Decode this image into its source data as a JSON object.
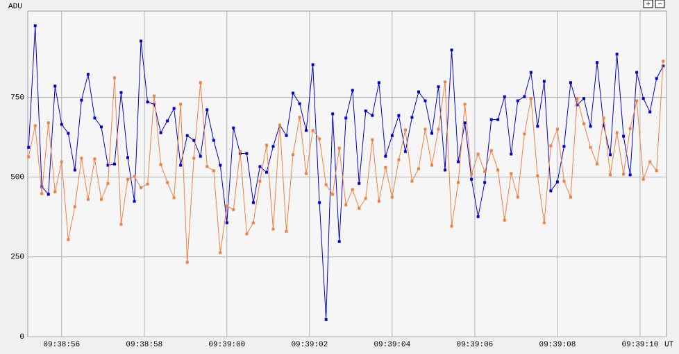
{
  "chart_data": {
    "type": "line",
    "y_label": "ADU",
    "x_label": "UT",
    "controls": [
      "+",
      "−"
    ],
    "grid": true,
    "ylim": [
      0,
      1020
    ],
    "yticks": [
      0,
      250,
      500,
      750
    ],
    "xlim": [
      34735.18,
      34750.64
    ],
    "xticks": [
      {
        "value": 34736,
        "label": "09:38:56"
      },
      {
        "value": 34738,
        "label": "09:38:58"
      },
      {
        "value": 34740,
        "label": "09:39:00"
      },
      {
        "value": 34742,
        "label": "09:39:02"
      },
      {
        "value": 34744,
        "label": "09:39:04"
      },
      {
        "value": 34746,
        "label": "09:39:06"
      },
      {
        "value": 34748,
        "label": "09:39:08"
      },
      {
        "value": 34750,
        "label": "09:39:10"
      }
    ],
    "x": [
      34735.2,
      34735.36,
      34735.52,
      34735.68,
      34735.84,
      34736,
      34736.16,
      34736.32,
      34736.48,
      34736.64,
      34736.8,
      34736.96,
      34737.12,
      34737.28,
      34737.44,
      34737.6,
      34737.76,
      34737.92,
      34738.08,
      34738.24,
      34738.4,
      34738.56,
      34738.72,
      34738.88,
      34739.04,
      34739.2,
      34739.36,
      34739.52,
      34739.68,
      34739.84,
      34740,
      34740.16,
      34740.32,
      34740.48,
      34740.64,
      34740.8,
      34740.96,
      34741.12,
      34741.28,
      34741.44,
      34741.6,
      34741.76,
      34741.92,
      34742.08,
      34742.24,
      34742.4,
      34742.56,
      34742.72,
      34742.88,
      34743.04,
      34743.2,
      34743.36,
      34743.52,
      34743.68,
      34743.84,
      34744,
      34744.16,
      34744.32,
      34744.48,
      34744.64,
      34744.8,
      34744.96,
      34745.12,
      34745.28,
      34745.44,
      34745.6,
      34745.76,
      34745.92,
      34746.08,
      34746.24,
      34746.4,
      34746.56,
      34746.72,
      34746.88,
      34747.04,
      34747.2,
      34747.36,
      34747.52,
      34747.68,
      34747.84,
      34748,
      34748.16,
      34748.32,
      34748.48,
      34748.64,
      34748.8,
      34748.96,
      34749.12,
      34749.28,
      34749.44,
      34749.6,
      34749.76,
      34749.92,
      34750.08,
      34750.24,
      34750.4,
      34750.56
    ],
    "series": [
      {
        "color": "#0000cc",
        "values": [
          593,
          974,
          470,
          446,
          785,
          665,
          637,
          522,
          741,
          822,
          685,
          657,
          537,
          541,
          765,
          561,
          424,
          926,
          735,
          728,
          639,
          676,
          715,
          537,
          630,
          615,
          565,
          711,
          615,
          537,
          357,
          654,
          574,
          574,
          420,
          533,
          515,
          596,
          663,
          630,
          763,
          730,
          646,
          852,
          420,
          54,
          698,
          298,
          685,
          772,
          480,
          707,
          693,
          796,
          565,
          630,
          693,
          580,
          687,
          767,
          739,
          637,
          783,
          522,
          898,
          548,
          670,
          493,
          376,
          483,
          680,
          680,
          752,
          572,
          739,
          752,
          828,
          659,
          800,
          457,
          485,
          596,
          796,
          726,
          746,
          659,
          859,
          661,
          570,
          885,
          628,
          507,
          828,
          746,
          704,
          809,
          848
        ]
      },
      {
        "color": "#f08040",
        "values": [
          563,
          661,
          448,
          670,
          454,
          548,
          304,
          407,
          559,
          430,
          557,
          430,
          480,
          811,
          352,
          493,
          502,
          467,
          478,
          754,
          539,
          483,
          435,
          728,
          233,
          559,
          796,
          533,
          520,
          263,
          409,
          398,
          580,
          322,
          357,
          487,
          600,
          337,
          663,
          330,
          570,
          687,
          511,
          646,
          620,
          476,
          446,
          591,
          413,
          461,
          402,
          433,
          617,
          424,
          530,
          437,
          554,
          648,
          487,
          526,
          650,
          537,
          650,
          798,
          346,
          483,
          728,
          509,
          572,
          517,
          583,
          522,
          365,
          511,
          437,
          635,
          746,
          504,
          357,
          598,
          650,
          487,
          437,
          746,
          667,
          593,
          541,
          685,
          507,
          639,
          509,
          652,
          739,
          493,
          548,
          520,
          863
        ]
      }
    ]
  }
}
